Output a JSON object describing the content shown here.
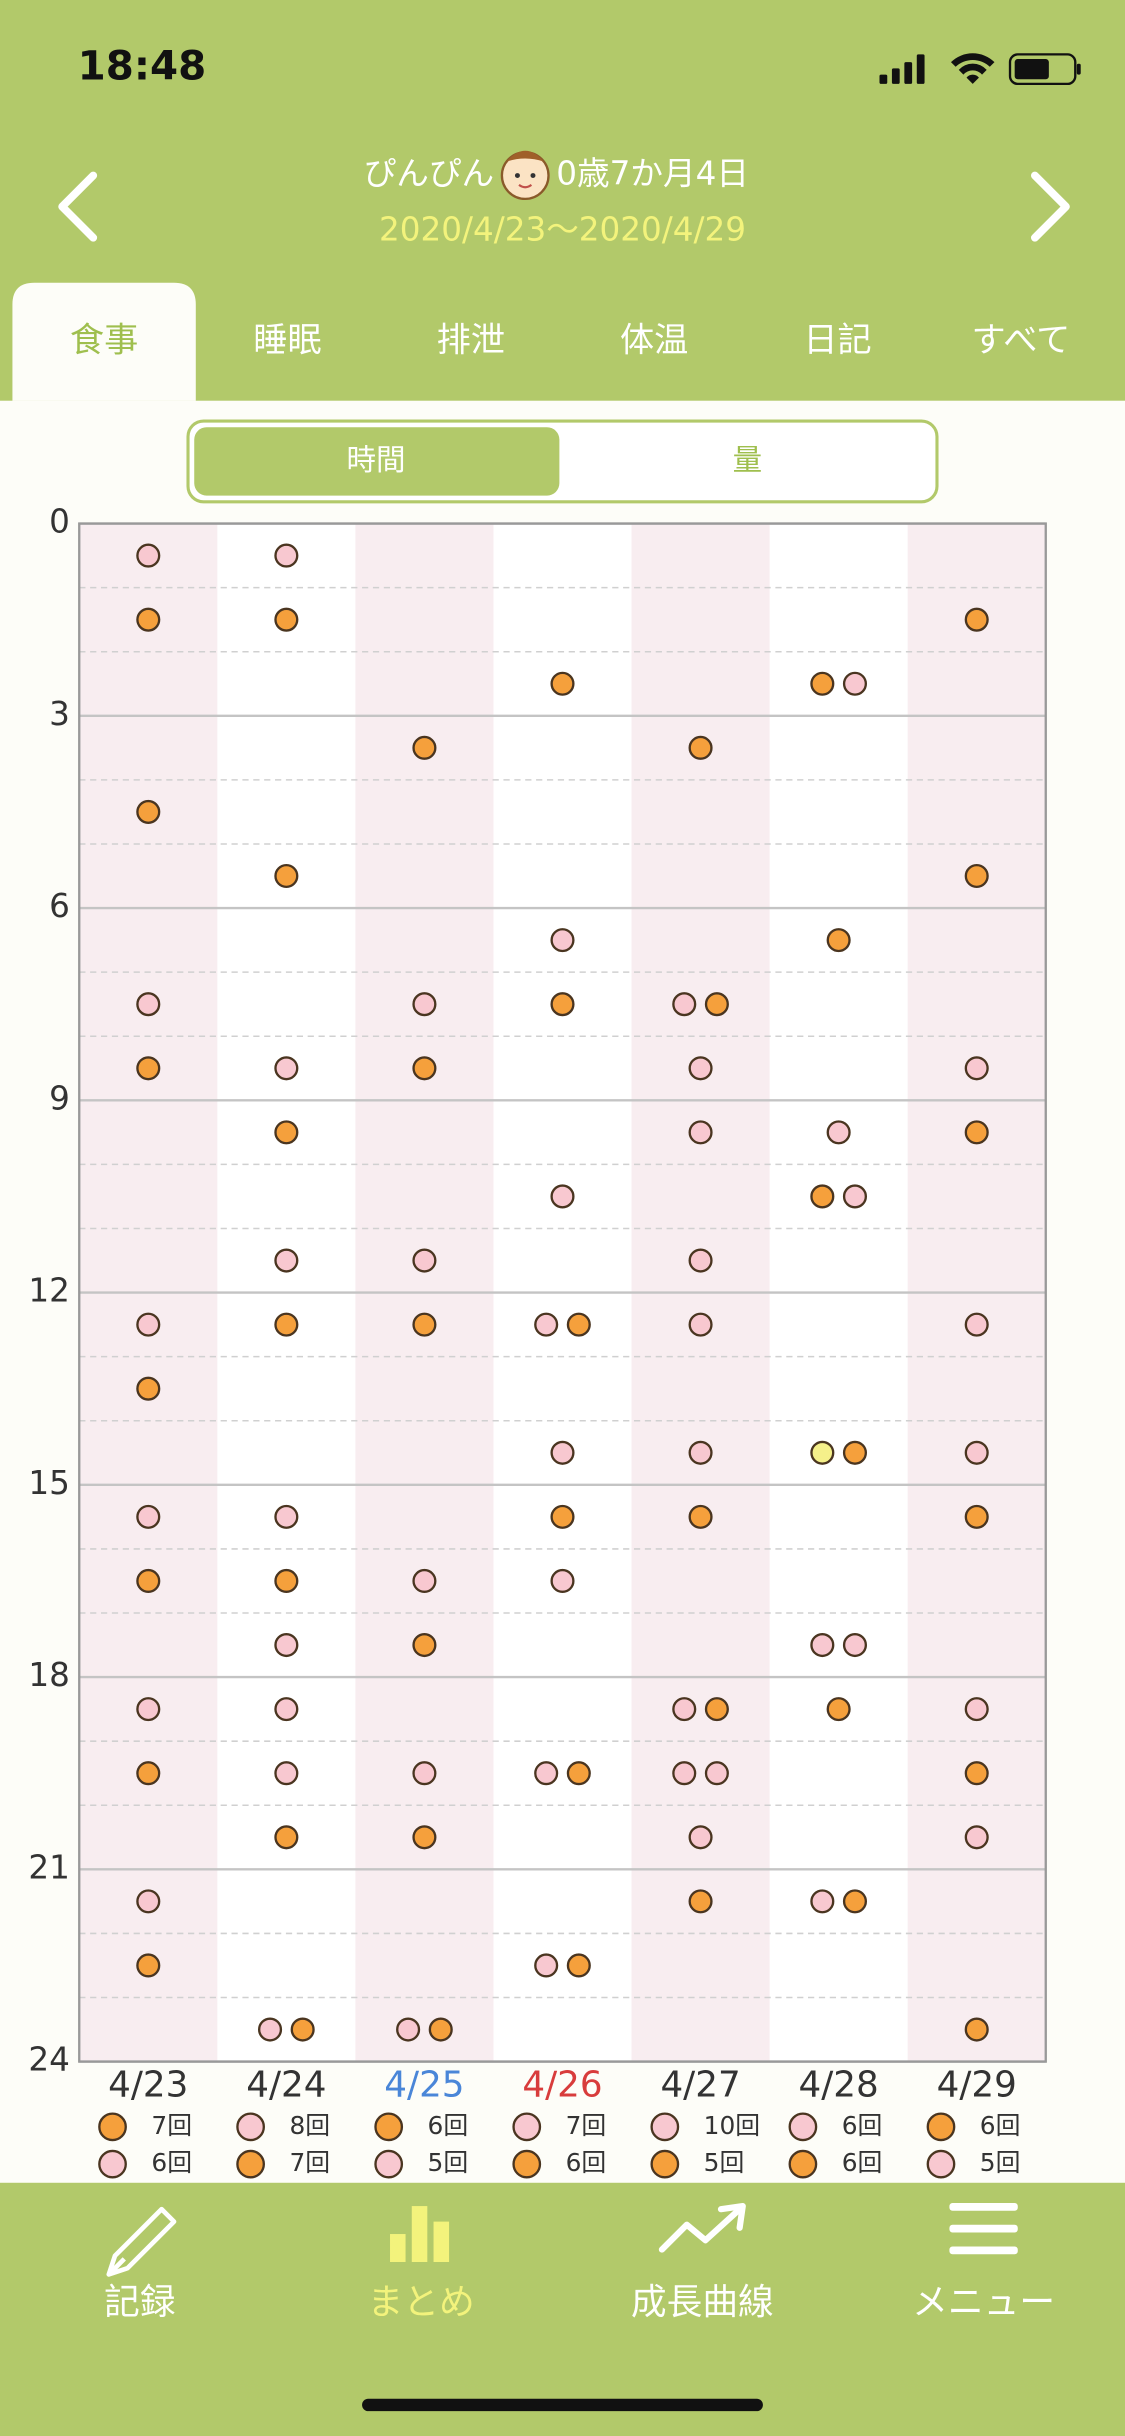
{
  "status_bar": {
    "time": "18:48"
  },
  "header": {
    "name": "ぴんぴん",
    "age": "0歳7か月4日",
    "range": "2020/4/23〜2020/4/29"
  },
  "tabs": [
    "食事",
    "睡眠",
    "排泄",
    "体温",
    "日記",
    "すべて"
  ],
  "active_tab": 0,
  "toggle": {
    "options": [
      "時間",
      "量"
    ],
    "selected": 0
  },
  "chart": {
    "ylim": [
      0,
      24
    ],
    "yticks": [
      0,
      3,
      6,
      9,
      12,
      15,
      18,
      21,
      24
    ],
    "days": [
      {
        "label": "4/23",
        "label_color": "#333333",
        "dots": [
          {
            "time": 0.5,
            "color": "#f8c8d0"
          },
          {
            "time": 1.5,
            "color": "#f5a03c"
          },
          {
            "time": 4.5,
            "color": "#f5a03c"
          },
          {
            "time": 7.5,
            "color": "#f8c8d0"
          },
          {
            "time": 8.5,
            "color": "#f5a03c"
          },
          {
            "time": 12.5,
            "color": "#f8c8d0"
          },
          {
            "time": 13.5,
            "color": "#f5a03c"
          },
          {
            "time": 15.5,
            "color": "#f8c8d0"
          },
          {
            "time": 16.5,
            "color": "#f5a03c"
          },
          {
            "time": 18.5,
            "color": "#f8c8d0"
          },
          {
            "time": 19.5,
            "color": "#f5a03c"
          },
          {
            "time": 21.5,
            "color": "#f8c8d0"
          },
          {
            "time": 22.5,
            "color": "#f5a03c"
          }
        ],
        "summary": [
          {
            "color": "#f5a03c",
            "label": "7回"
          },
          {
            "color": "#f8c8d0",
            "label": "6回"
          }
        ]
      },
      {
        "label": "4/24",
        "label_color": "#333333",
        "dots": [
          {
            "time": 0.5,
            "color": "#f8c8d0"
          },
          {
            "time": 1.5,
            "color": "#f5a03c"
          },
          {
            "time": 5.5,
            "color": "#f5a03c"
          },
          {
            "time": 8.5,
            "color": "#f8c8d0"
          },
          {
            "time": 9.5,
            "color": "#f5a03c"
          },
          {
            "time": 11.5,
            "color": "#f8c8d0"
          },
          {
            "time": 12.5,
            "color": "#f5a03c"
          },
          {
            "time": 15.5,
            "color": "#f8c8d0"
          },
          {
            "time": 16.5,
            "color": "#f5a03c"
          },
          {
            "time": 17.5,
            "color": "#f8c8d0"
          },
          {
            "time": 18.5,
            "color": "#f8c8d0"
          },
          {
            "time": 19.5,
            "color": "#f8c8d0"
          },
          {
            "time": 20.5,
            "color": "#f5a03c"
          },
          {
            "time": 23.5,
            "color": "#f8c8d0"
          },
          {
            "time": 23.5,
            "color": "#f5a03c"
          }
        ],
        "summary": [
          {
            "color": "#f8c8d0",
            "label": "8回"
          },
          {
            "color": "#f5a03c",
            "label": "7回"
          }
        ]
      },
      {
        "label": "4/25",
        "label_color": "#4a86d8",
        "dots": [
          {
            "time": 3.5,
            "color": "#f5a03c"
          },
          {
            "time": 7.5,
            "color": "#f8c8d0"
          },
          {
            "time": 8.5,
            "color": "#f5a03c"
          },
          {
            "time": 11.5,
            "color": "#f8c8d0"
          },
          {
            "time": 12.5,
            "color": "#f5a03c"
          },
          {
            "time": 16.5,
            "color": "#f8c8d0"
          },
          {
            "time": 17.5,
            "color": "#f5a03c"
          },
          {
            "time": 19.5,
            "color": "#f8c8d0"
          },
          {
            "time": 20.5,
            "color": "#f5a03c"
          },
          {
            "time": 23.5,
            "color": "#f8c8d0"
          },
          {
            "time": 23.5,
            "color": "#f5a03c"
          }
        ],
        "summary": [
          {
            "color": "#f5a03c",
            "label": "6回"
          },
          {
            "color": "#f8c8d0",
            "label": "5回"
          }
        ]
      },
      {
        "label": "4/26",
        "label_color": "#d83c3c",
        "dots": [
          {
            "time": 2.5,
            "color": "#f5a03c"
          },
          {
            "time": 6.5,
            "color": "#f8c8d0"
          },
          {
            "time": 7.5,
            "color": "#f5a03c"
          },
          {
            "time": 10.5,
            "color": "#f8c8d0"
          },
          {
            "time": 12.5,
            "color": "#f8c8d0"
          },
          {
            "time": 12.5,
            "color": "#f5a03c"
          },
          {
            "time": 14.5,
            "color": "#f8c8d0"
          },
          {
            "time": 15.5,
            "color": "#f5a03c"
          },
          {
            "time": 16.5,
            "color": "#f8c8d0"
          },
          {
            "time": 19.5,
            "color": "#f8c8d0"
          },
          {
            "time": 19.5,
            "color": "#f5a03c"
          },
          {
            "time": 22.5,
            "color": "#f8c8d0"
          },
          {
            "time": 22.5,
            "color": "#f5a03c"
          }
        ],
        "summary": [
          {
            "color": "#f8c8d0",
            "label": "7回"
          },
          {
            "color": "#f5a03c",
            "label": "6回"
          }
        ]
      },
      {
        "label": "4/27",
        "label_color": "#333333",
        "dots": [
          {
            "time": 3.5,
            "color": "#f5a03c"
          },
          {
            "time": 7.5,
            "color": "#f8c8d0"
          },
          {
            "time": 7.5,
            "color": "#f5a03c"
          },
          {
            "time": 8.5,
            "color": "#f8c8d0"
          },
          {
            "time": 9.5,
            "color": "#f8c8d0"
          },
          {
            "time": 11.5,
            "color": "#f8c8d0"
          },
          {
            "time": 12.5,
            "color": "#f8c8d0"
          },
          {
            "time": 14.5,
            "color": "#f8c8d0"
          },
          {
            "time": 15.5,
            "color": "#f5a03c"
          },
          {
            "time": 18.5,
            "color": "#f8c8d0"
          },
          {
            "time": 18.5,
            "color": "#f5a03c"
          },
          {
            "time": 19.5,
            "color": "#f8c8d0"
          },
          {
            "time": 19.5,
            "color": "#f8c8d0"
          },
          {
            "time": 20.5,
            "color": "#f8c8d0"
          },
          {
            "time": 21.5,
            "color": "#f5a03c"
          }
        ],
        "summary": [
          {
            "color": "#f8c8d0",
            "label": "10回"
          },
          {
            "color": "#f5a03c",
            "label": "5回"
          }
        ]
      },
      {
        "label": "4/28",
        "label_color": "#333333",
        "dots": [
          {
            "time": 2.5,
            "color": "#f5a03c"
          },
          {
            "time": 2.5,
            "color": "#f8c8d0"
          },
          {
            "time": 6.5,
            "color": "#f5a03c"
          },
          {
            "time": 9.5,
            "color": "#f8c8d0"
          },
          {
            "time": 10.5,
            "color": "#f5a03c"
          },
          {
            "time": 10.5,
            "color": "#f8c8d0"
          },
          {
            "time": 14.5,
            "color": "#f5f08a"
          },
          {
            "time": 14.5,
            "color": "#f5a03c"
          },
          {
            "time": 17.5,
            "color": "#f8c8d0"
          },
          {
            "time": 17.5,
            "color": "#f8c8d0"
          },
          {
            "time": 18.5,
            "color": "#f5a03c"
          },
          {
            "time": 21.5,
            "color": "#f8c8d0"
          },
          {
            "time": 21.5,
            "color": "#f5a03c"
          }
        ],
        "summary": [
          {
            "color": "#f8c8d0",
            "label": "6回"
          },
          {
            "color": "#f5a03c",
            "label": "6回"
          }
        ]
      },
      {
        "label": "4/29",
        "label_color": "#333333",
        "dots": [
          {
            "time": 1.5,
            "color": "#f5a03c"
          },
          {
            "time": 5.5,
            "color": "#f5a03c"
          },
          {
            "time": 8.5,
            "color": "#f8c8d0"
          },
          {
            "time": 9.5,
            "color": "#f5a03c"
          },
          {
            "time": 12.5,
            "color": "#f8c8d0"
          },
          {
            "time": 14.5,
            "color": "#f8c8d0"
          },
          {
            "time": 15.5,
            "color": "#f5a03c"
          },
          {
            "time": 18.5,
            "color": "#f8c8d0"
          },
          {
            "time": 19.5,
            "color": "#f5a03c"
          },
          {
            "time": 20.5,
            "color": "#f8c8d0"
          },
          {
            "time": 23.5,
            "color": "#f5a03c"
          }
        ],
        "summary": [
          {
            "color": "#f5a03c",
            "label": "6回"
          },
          {
            "color": "#f8c8d0",
            "label": "5回"
          }
        ]
      }
    ]
  },
  "nav": {
    "items": [
      "記録",
      "まとめ",
      "成長曲線",
      "メニュー"
    ],
    "active": 1
  }
}
